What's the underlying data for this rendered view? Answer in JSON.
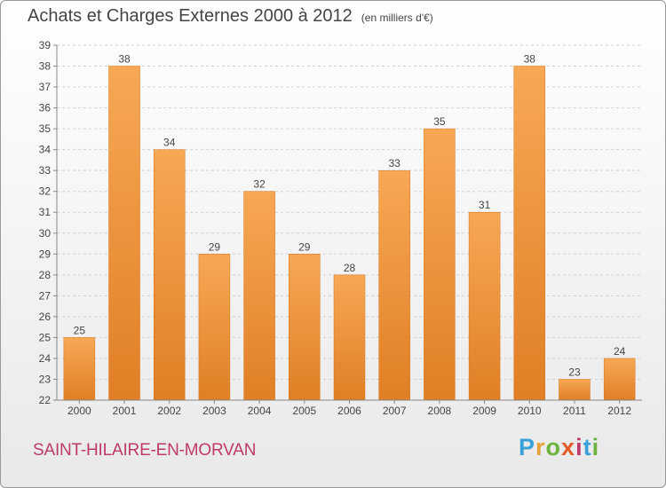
{
  "header": {
    "title": "Achats et Charges Externes 2000 à 2012",
    "unit": "(en milliers d'€)"
  },
  "footer": {
    "city": "SAINT-HILAIRE-EN-MORVAN",
    "logo_letters": [
      "P",
      "r",
      "o",
      "x",
      "i",
      "t",
      "i"
    ]
  },
  "colors": {
    "bar_light": "#f7a855",
    "bar_dark": "#e07f25",
    "city": "#c0396b"
  },
  "chart_data": {
    "type": "bar",
    "title": "Achats et Charges Externes 2000 à 2012",
    "subtitle": "(en milliers d'€)",
    "categories": [
      "2000",
      "2001",
      "2002",
      "2003",
      "2004",
      "2005",
      "2006",
      "2007",
      "2008",
      "2009",
      "2010",
      "2011",
      "2012"
    ],
    "values": [
      25,
      38,
      34,
      29,
      32,
      29,
      28,
      33,
      35,
      31,
      38,
      23,
      24
    ],
    "data_labels": [
      "25",
      "38",
      "34",
      "29",
      "32",
      "29",
      "28",
      "33",
      "35",
      "31",
      "38",
      "23",
      "24"
    ],
    "ylim": [
      22,
      39
    ],
    "yticks": [
      22,
      23,
      24,
      25,
      26,
      27,
      28,
      29,
      30,
      31,
      32,
      33,
      34,
      35,
      36,
      37,
      38,
      39
    ],
    "grid": true,
    "xlabel": "",
    "ylabel": ""
  }
}
